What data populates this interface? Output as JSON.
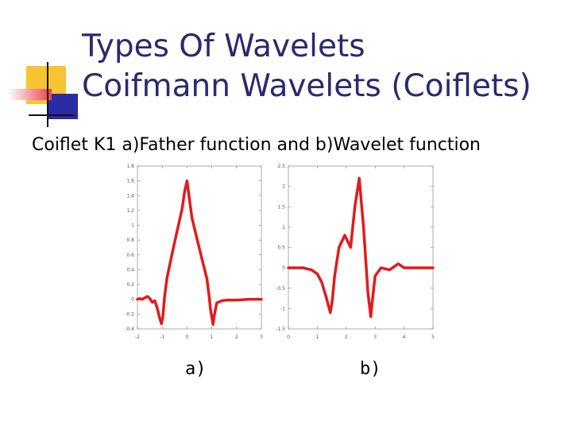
{
  "slide": {
    "title_line1": "Types Of Wavelets",
    "title_line2": "Coifmann Wavelets (Coiflets)",
    "subtitle": "Coiflet K1 a)Father function and b)Wavelet function",
    "caption_a": "a)",
    "caption_b": "b)"
  },
  "colors": {
    "title": "#2a2a6e",
    "curve": "#e11b1b",
    "deco_yellow": "#f7c531",
    "deco_blue": "#2b2ba8",
    "deco_red": "#ef3b4a"
  },
  "chart_data": [
    {
      "type": "line",
      "title": "",
      "xlabel": "",
      "ylabel": "",
      "xlim": [
        -2,
        3
      ],
      "ylim": [
        -0.4,
        1.8
      ],
      "xticks": [
        -2,
        -1,
        0,
        1,
        2,
        3
      ],
      "yticks": [
        -0.4,
        -0.2,
        0,
        0.2,
        0.4,
        0.6,
        0.8,
        1,
        1.2,
        1.4,
        1.6,
        1.8
      ],
      "ytick_labels": [
        "-0.4",
        "-0.2",
        "0",
        "0.2",
        "0.4",
        "0.6",
        "0.8",
        "1",
        "1.2",
        "1.4",
        "1.6",
        "1.8"
      ],
      "grid": false,
      "series": [
        {
          "x": [
            -2.0,
            -1.9,
            -1.8,
            -1.6,
            -1.5,
            -1.4,
            -1.3,
            -1.2,
            -1.1,
            -1.03,
            -0.97,
            -0.9,
            -0.8,
            -0.6,
            -0.4,
            -0.2,
            -0.1,
            0.0,
            0.1,
            0.2,
            0.4,
            0.6,
            0.8,
            0.9,
            0.95,
            1.05,
            1.1,
            1.2,
            1.4,
            1.6,
            2.0,
            2.5,
            3.0
          ],
          "y": [
            0.0,
            0.01,
            0.0,
            0.04,
            0.01,
            -0.04,
            -0.02,
            -0.12,
            -0.26,
            -0.33,
            -0.22,
            0.05,
            0.3,
            0.62,
            0.92,
            1.22,
            1.45,
            1.6,
            1.35,
            1.1,
            0.82,
            0.55,
            0.28,
            0.02,
            -0.14,
            -0.34,
            -0.22,
            -0.05,
            -0.02,
            -0.01,
            -0.01,
            0.0,
            0.0
          ]
        }
      ]
    },
    {
      "type": "line",
      "title": "",
      "xlabel": "",
      "ylabel": "",
      "xlim": [
        0,
        5
      ],
      "ylim": [
        -1.5,
        2.5
      ],
      "xticks": [
        0,
        1,
        2,
        3,
        4,
        5
      ],
      "yticks": [
        -1.5,
        -1,
        -0.5,
        0,
        0.5,
        1,
        1.5,
        2,
        2.5
      ],
      "ytick_labels": [
        "-1.5",
        "-1",
        "-0.5",
        "0",
        "0.5",
        "1",
        "1.5",
        "2",
        "2.5"
      ],
      "grid": false,
      "series": [
        {
          "x": [
            0.0,
            0.5,
            0.8,
            1.0,
            1.15,
            1.3,
            1.45,
            1.52,
            1.6,
            1.75,
            1.95,
            2.15,
            2.3,
            2.45,
            2.6,
            2.75,
            2.85,
            2.92,
            3.0,
            3.2,
            3.5,
            3.7,
            3.8,
            4.0,
            4.5,
            5.0
          ],
          "y": [
            0.0,
            0.0,
            -0.05,
            -0.15,
            -0.35,
            -0.7,
            -1.1,
            -0.8,
            -0.2,
            0.5,
            0.8,
            0.5,
            1.5,
            2.2,
            1.0,
            -0.6,
            -1.2,
            -0.7,
            -0.2,
            0.0,
            -0.05,
            0.05,
            0.1,
            0.0,
            0.0,
            0.0
          ]
        }
      ]
    }
  ]
}
